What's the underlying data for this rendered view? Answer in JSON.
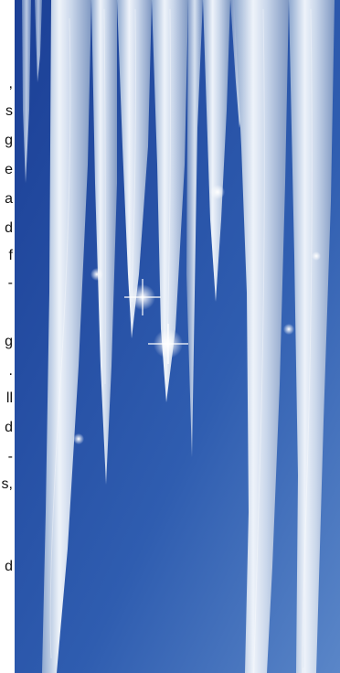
{
  "text_strip": {
    "lines": [
      ",",
      "s",
      "g",
      "e",
      "a",
      "d",
      "f",
      "-",
      "g",
      ".",
      "ll",
      "d",
      "-",
      "s,",
      "d"
    ]
  },
  "photo": {
    "subject": "icicles",
    "sky_color_top": "#1b3f96",
    "sky_color_bottom": "#5a86c8",
    "ice_color": "#dfe8f4"
  }
}
